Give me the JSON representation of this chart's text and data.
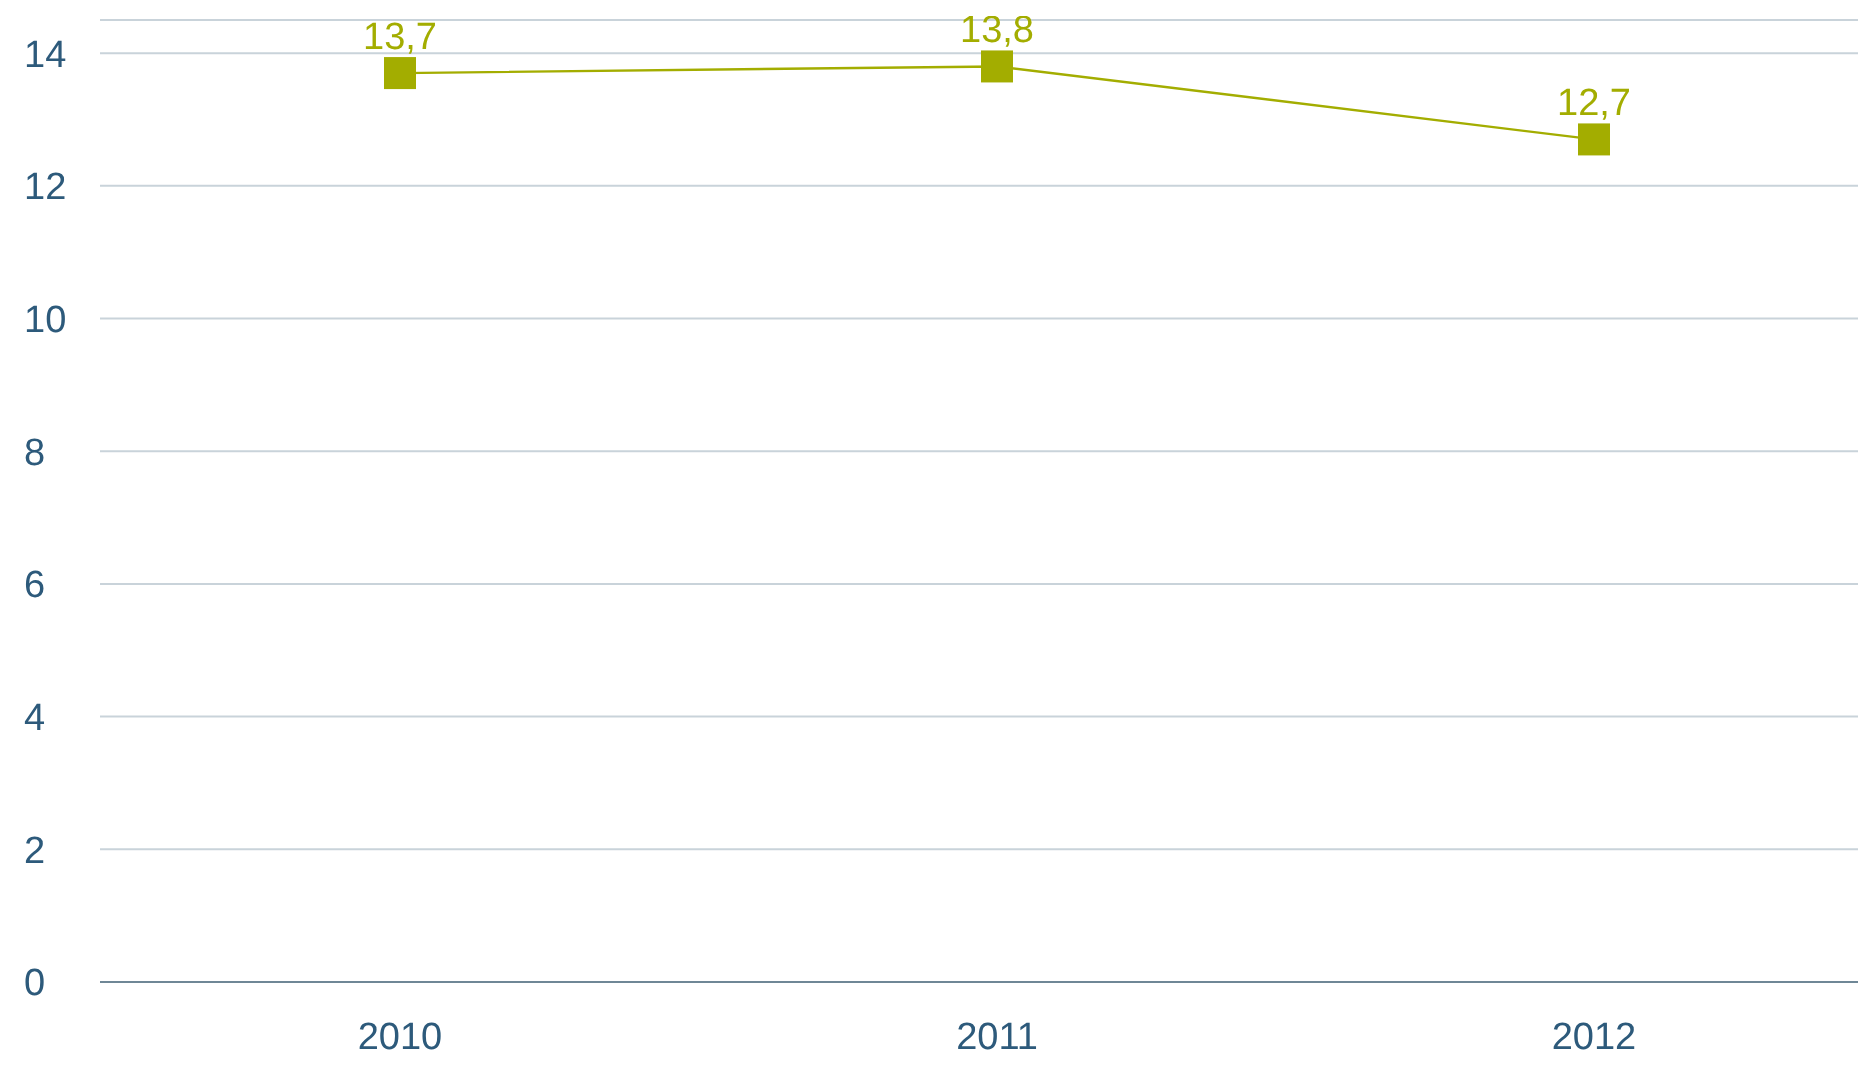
{
  "chart_data": {
    "type": "line",
    "categories": [
      "2010",
      "2011",
      "2012"
    ],
    "series": [
      {
        "color": "#a3ad00",
        "values": [
          13.7,
          13.8,
          12.7
        ],
        "value_labels": [
          "13,7",
          "13,8",
          "12,7"
        ]
      }
    ],
    "ylim": [
      0,
      14.5
    ],
    "yticks": [
      0,
      2,
      4,
      6,
      8,
      10,
      12,
      14
    ],
    "grid": "y",
    "marker": "square"
  }
}
